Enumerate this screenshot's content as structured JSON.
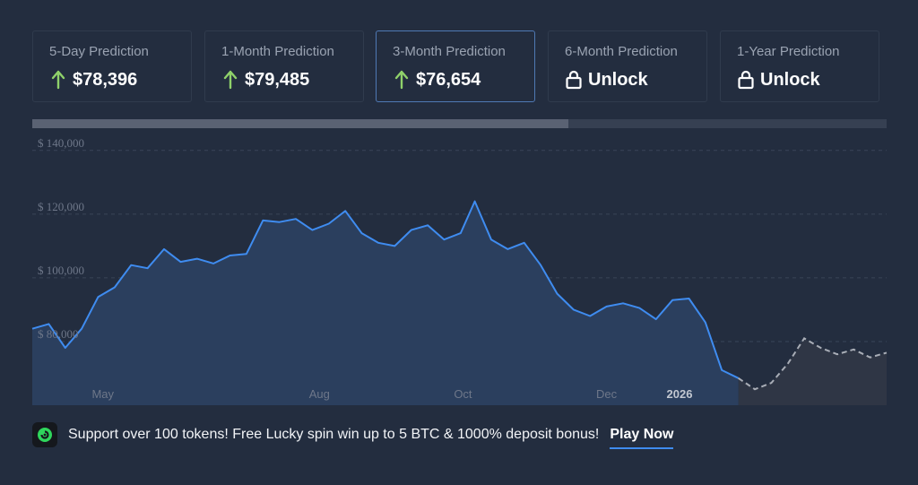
{
  "predictions": [
    {
      "label": "5-Day Prediction",
      "value": "$78,396",
      "icon": "arrow-up-icon",
      "active": false
    },
    {
      "label": "1-Month Prediction",
      "value": "$79,485",
      "icon": "arrow-up-icon",
      "active": false
    },
    {
      "label": "3-Month Prediction",
      "value": "$76,654",
      "icon": "arrow-up-icon",
      "active": true
    },
    {
      "label": "6-Month Prediction",
      "value": "Unlock",
      "icon": "lock-icon",
      "active": false
    },
    {
      "label": "1-Year Prediction",
      "value": "Unlock",
      "icon": "lock-icon",
      "active": false
    }
  ],
  "range_selector": {
    "selected_fraction": 0.628
  },
  "colors": {
    "background": "#232d3f",
    "line": "#3f8cf0",
    "area": "#2b3f5e",
    "forecast_line": "#a8adb6",
    "forecast_area": "#2f3645",
    "arrow": "#8fd16a",
    "grid": "#3a4558"
  },
  "chart_data": {
    "type": "area",
    "x_ticks": [
      "May",
      "Aug",
      "Oct",
      "Dec",
      "2026"
    ],
    "y_ticks": [
      "$ 80,000",
      "$ 100,000",
      "$ 120,000",
      "$ 140,000"
    ],
    "ylim": [
      60000,
      145000
    ],
    "grid": true,
    "series": [
      {
        "x": [
          "2025-04-01",
          "2025-04-08",
          "2025-04-15",
          "2025-04-22",
          "2025-04-29",
          "2025-05-06",
          "2025-05-13",
          "2025-05-20",
          "2025-05-27",
          "2025-06-03",
          "2025-06-10",
          "2025-06-17",
          "2025-06-24",
          "2025-07-01",
          "2025-07-08",
          "2025-07-15",
          "2025-07-22",
          "2025-07-29",
          "2025-08-05",
          "2025-08-12",
          "2025-08-19",
          "2025-08-26",
          "2025-09-02",
          "2025-09-09",
          "2025-09-16",
          "2025-09-23",
          "2025-09-30",
          "2025-10-06",
          "2025-10-13",
          "2025-10-20",
          "2025-10-27",
          "2025-11-03",
          "2025-11-10",
          "2025-11-17",
          "2025-11-24",
          "2025-12-01",
          "2025-12-08",
          "2025-12-15",
          "2025-12-22",
          "2025-12-29",
          "2026-01-05",
          "2026-01-12",
          "2026-01-19",
          "2026-01-26",
          "2026-02-02",
          "2026-02-09",
          "2026-02-16",
          "2026-02-23",
          "2026-03-02",
          "2026-03-09",
          "2026-03-16",
          "2026-03-23",
          "2026-03-30"
        ],
        "values": [
          84000,
          85500,
          78000,
          84000,
          94000,
          97000,
          104000,
          103000,
          109000,
          105000,
          106000,
          104500,
          107000,
          107500,
          118000,
          117500,
          118500,
          115000,
          117000,
          121000,
          114000,
          111000,
          110000,
          115000,
          116500,
          112000,
          114000,
          124000,
          112000,
          109000,
          111000,
          104000,
          95000,
          90000,
          88000,
          91000,
          92000,
          90500,
          87000,
          93000,
          93500,
          86000,
          71000,
          68500,
          65000,
          67000,
          73000,
          81000,
          78000,
          76000,
          77500,
          75000,
          76500
        ],
        "forecast_start": "2026-01-26"
      }
    ]
  },
  "promo": {
    "text": "Support over 100 tokens! Free Lucky spin win up to 5 BTC & 1000% deposit bonus!",
    "link": "Play Now",
    "logo_icon": "casino-logo-icon"
  }
}
